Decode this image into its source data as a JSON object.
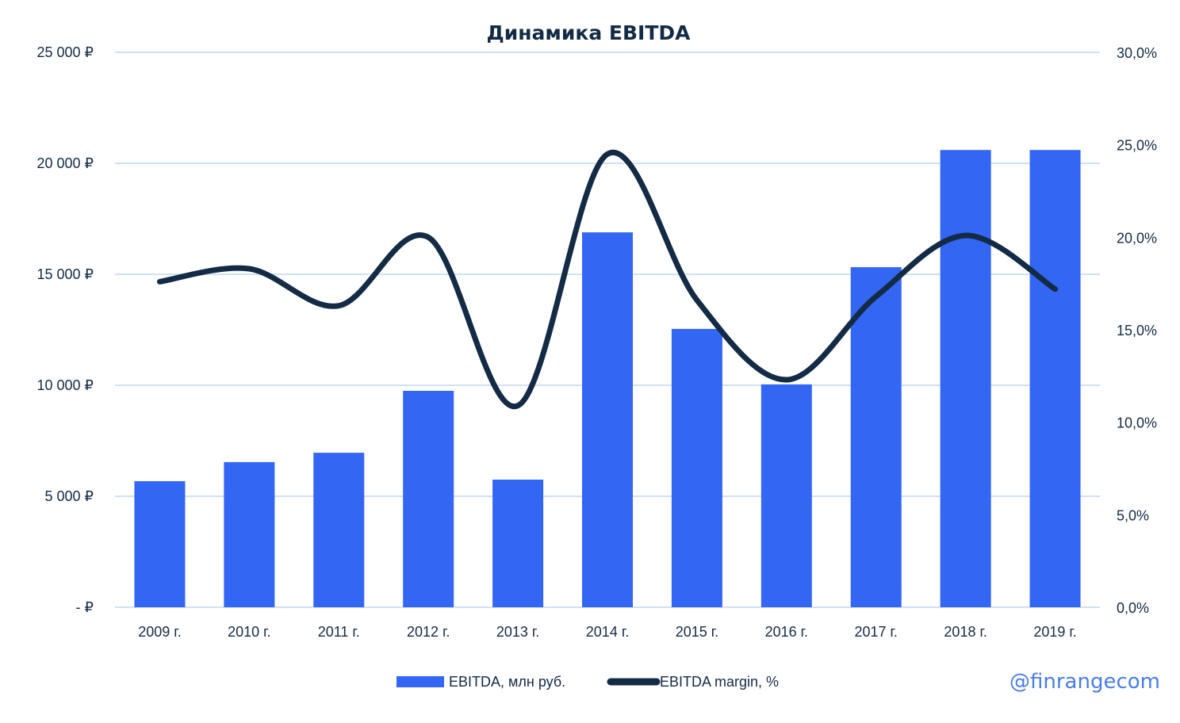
{
  "chart_data": {
    "type": "bar",
    "title": "Динамика EBITDA",
    "categories": [
      "2009 г.",
      "2010 г.",
      "2011 г.",
      "2012 г.",
      "2013 г.",
      "2014 г.",
      "2015 г.",
      "2016 г.",
      "2017 г.",
      "2018 г.",
      "2019 г."
    ],
    "series": [
      {
        "name": "EBITDA, млн руб.",
        "type": "bar",
        "axis": "left",
        "color": "#3366f2",
        "values": [
          5680,
          6540,
          6960,
          9750,
          5750,
          16890,
          12540,
          10040,
          15320,
          20600,
          20600
        ]
      },
      {
        "name": "EBITDA margin, %",
        "type": "line",
        "axis": "right",
        "smooth": true,
        "color": "#132b45",
        "values": [
          17.6,
          18.3,
          16.3,
          20.0,
          10.9,
          24.5,
          16.6,
          12.3,
          16.8,
          20.1,
          17.2
        ]
      }
    ],
    "y_left": {
      "ylim": [
        0,
        25000
      ],
      "ticks": [
        0,
        5000,
        10000,
        15000,
        20000,
        25000
      ],
      "tick_labels": [
        "-   ₽",
        "5 000 ₽",
        "10 000 ₽",
        "15 000 ₽",
        "20 000 ₽",
        "25 000 ₽"
      ]
    },
    "y_right": {
      "ylim": [
        0,
        30
      ],
      "ticks": [
        0,
        5,
        10,
        15,
        20,
        25,
        30
      ],
      "tick_labels": [
        "0,0%",
        "5,0%",
        "10,0%",
        "15,0%",
        "20,0%",
        "25,0%",
        "30,0%"
      ]
    },
    "grid": true,
    "grid_color": "#cfe2f3",
    "legend_position": "bottom"
  },
  "watermark": "@finrangecom"
}
